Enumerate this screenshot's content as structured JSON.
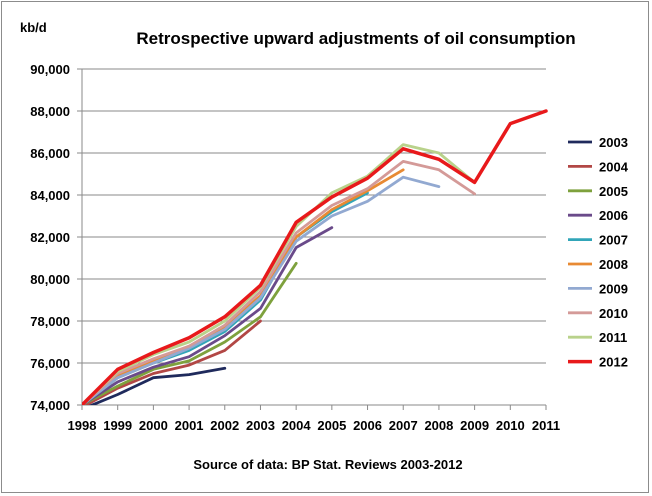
{
  "chart_data": {
    "type": "line",
    "title": "Retrospective upward adjustments of oil consumption",
    "unit_label": "kb/d",
    "source": "Source of data: BP Stat. Reviews 2003-2012",
    "xlabel": "",
    "ylabel": "",
    "x": [
      1998,
      1999,
      2000,
      2001,
      2002,
      2003,
      2004,
      2005,
      2006,
      2007,
      2008,
      2009,
      2010,
      2011
    ],
    "x_tick_labels": [
      "1998",
      "1999",
      "2000",
      "2001",
      "2002",
      "2003",
      "2004",
      "2005",
      "2006",
      "2007",
      "2008",
      "2009",
      "2010",
      "2011"
    ],
    "ylim": [
      74000,
      90000
    ],
    "y_tick_values": [
      74000,
      76000,
      78000,
      80000,
      82000,
      84000,
      86000,
      88000,
      90000
    ],
    "y_tick_labels": [
      "74,000",
      "76,000",
      "78,000",
      "80,000",
      "82,000",
      "84,000",
      "86,000",
      "88,000",
      "90,000"
    ],
    "grid": "horizontal",
    "legend_position": "right",
    "series": [
      {
        "name": "2003",
        "color": "#1f2a5c",
        "values": [
          73800,
          74500,
          75300,
          75450,
          75750,
          null,
          null,
          null,
          null,
          null,
          null,
          null,
          null,
          null
        ]
      },
      {
        "name": "2004",
        "color": "#b24745",
        "values": [
          73900,
          74800,
          75500,
          75900,
          76600,
          78000,
          null,
          null,
          null,
          null,
          null,
          null,
          null,
          null
        ]
      },
      {
        "name": "2005",
        "color": "#7ea13d",
        "values": [
          74000,
          74900,
          75700,
          76100,
          77000,
          78200,
          80750,
          null,
          null,
          null,
          null,
          null,
          null,
          null
        ]
      },
      {
        "name": "2006",
        "color": "#6a4a8a",
        "values": [
          74000,
          75100,
          75800,
          76300,
          77300,
          78600,
          81500,
          82450,
          null,
          null,
          null,
          null,
          null,
          null
        ]
      },
      {
        "name": "2007",
        "color": "#31a5b8",
        "values": [
          74000,
          75300,
          76000,
          76600,
          77500,
          79000,
          82000,
          83200,
          84100,
          null,
          null,
          null,
          null,
          null
        ]
      },
      {
        "name": "2008",
        "color": "#e88a33",
        "values": [
          74000,
          75400,
          76100,
          76800,
          77700,
          79200,
          82000,
          83300,
          84200,
          85200,
          null,
          null,
          null,
          null
        ]
      },
      {
        "name": "2009",
        "color": "#92a9d1",
        "values": [
          74000,
          75300,
          76000,
          76700,
          77600,
          79100,
          81800,
          83000,
          83700,
          84850,
          84400,
          null,
          null,
          null
        ]
      },
      {
        "name": "2010",
        "color": "#d49a98",
        "values": [
          74000,
          75500,
          76200,
          76800,
          77800,
          79400,
          82200,
          83500,
          84300,
          85600,
          85200,
          84050,
          null,
          null
        ]
      },
      {
        "name": "2011",
        "color": "#b9d28b",
        "values": [
          74000,
          75600,
          76400,
          77000,
          78000,
          79600,
          82500,
          84100,
          84900,
          86400,
          86000,
          84600,
          null,
          null
        ]
      },
      {
        "name": "2012",
        "color": "#e8191b",
        "values": [
          74000,
          75700,
          76500,
          77200,
          78200,
          79700,
          82700,
          83900,
          84800,
          86200,
          85700,
          84600,
          87400,
          88000
        ]
      }
    ]
  }
}
